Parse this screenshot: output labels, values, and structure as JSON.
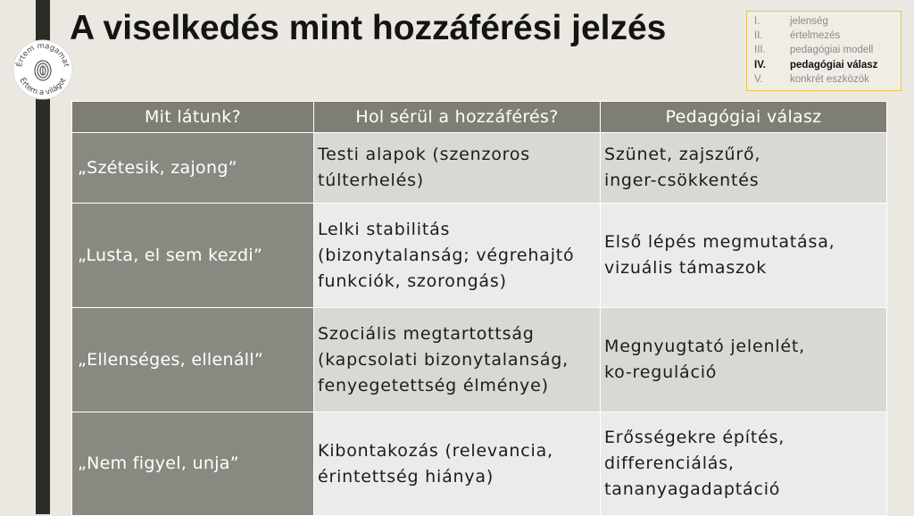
{
  "header": {
    "title": "A viselkedés mint hozzáférési jelzés"
  },
  "logo": {
    "top": "Értem magamat",
    "bottom": "Értem a világot"
  },
  "nav": [
    {
      "numeral": "I.",
      "label": "jelenség",
      "active": false
    },
    {
      "numeral": "II.",
      "label": "értelmezés",
      "active": false
    },
    {
      "numeral": "III.",
      "label": "pedagógiai modell",
      "active": false
    },
    {
      "numeral": "IV.",
      "label": "pedagógiai válasz",
      "active": true
    },
    {
      "numeral": "V.",
      "label": "konkrét eszközök",
      "active": false
    }
  ],
  "table": {
    "header": [
      "Mit látunk?",
      "Hol sérül a hozzáférés?",
      "Pedagógiai válasz"
    ],
    "rows": [
      [
        [
          "„Szétesik, zajong”"
        ],
        [
          "Testi alapok (szenzoros",
          "túlterhelés)"
        ],
        [
          "Szünet, zajszűrő,",
          "inger-csökkentés"
        ]
      ],
      [
        [
          "„Lusta, el sem kezdi”"
        ],
        [
          "Lelki stabilitás",
          "(bizonytalanság; végrehajtó",
          "funkciók, szorongás)"
        ],
        [
          "Első lépés megmutatása,",
          "vizuális támaszok"
        ]
      ],
      [
        [
          "„Ellenséges, ellenáll”"
        ],
        [
          "Szociális megtartottság",
          "(kapcsolati bizonytalanság,",
          "fenyegetettség élménye)"
        ],
        [
          "Megnyugtató jelenlét,",
          "ko-reguláció"
        ]
      ],
      [
        [
          "„Nem figyel, unja”"
        ],
        [
          "Kibontakozás (relevancia,",
          "érintettség hiánya)"
        ],
        [
          "Erősségekre építés,",
          "differenciálás,",
          "tananyagadaptáció"
        ]
      ]
    ]
  }
}
